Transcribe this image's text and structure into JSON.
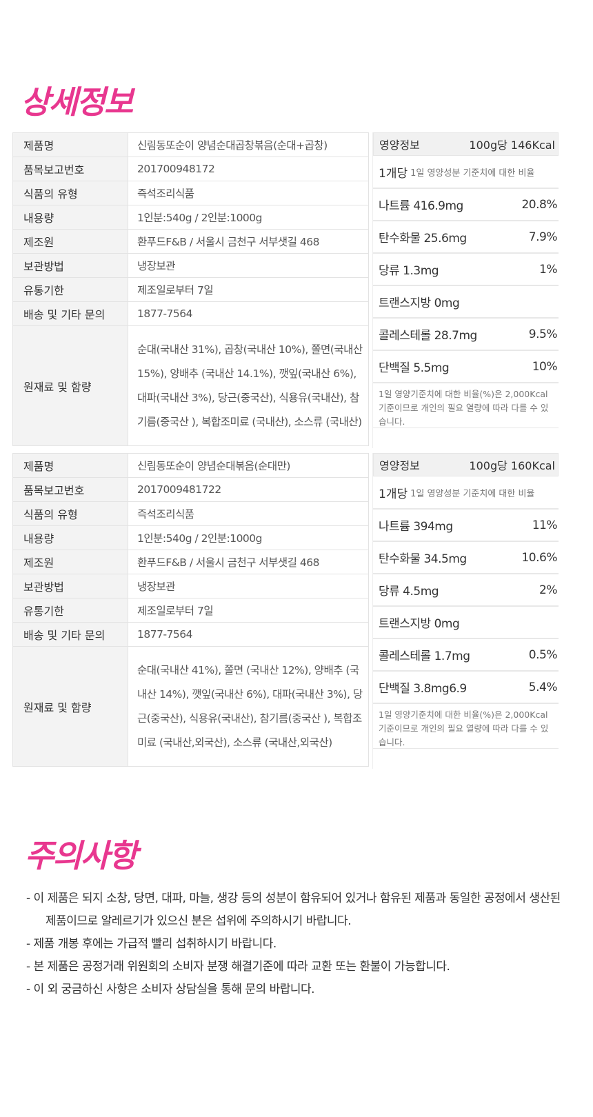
{
  "detail_title": "상세정보",
  "products": [
    {
      "spec": [
        {
          "label": "제품명",
          "value": "신림동또순이 양념순대곱창볶음(순대+곱창)"
        },
        {
          "label": "품목보고번호",
          "value": "201700948172"
        },
        {
          "label": "식품의 유형",
          "value": "즉석조리식품"
        },
        {
          "label": "내용량",
          "value": "1인분:540g / 2인분:1000g"
        },
        {
          "label": "제조원",
          "value": "환푸드F&B / 서울시 금천구 서부샛길 468"
        },
        {
          "label": "보관방법",
          "value": "냉장보관"
        },
        {
          "label": "유통기한",
          "value": "제조일로부터 7일"
        },
        {
          "label": "배송 및 기타 문의",
          "value": "1877-7564"
        },
        {
          "label": "원재료 및 함량",
          "value": "순대(국내산 31%), 곱창(국내산 10%), 쫄면(국내산 15%), 양배추 (국내산 14.1%), 깻잎(국내산 6%), 대파(국내산 3%), 당근(중국산), 식용유(국내산), 참기름(중국산 ), 복합조미료 (국내산), 소스류 (국내산)"
        }
      ],
      "nutrition": {
        "label": "영양정보",
        "kcal": "100g당 146Kcal",
        "per": "1개당",
        "per_note": "1일 영양성분 기준치에 대한 비율",
        "rows": [
          {
            "name": "나트륨 416.9mg",
            "pct": "20.8%"
          },
          {
            "name": "탄수화물 25.6mg",
            "pct": "7.9%"
          },
          {
            "name": "당류 1.3mg",
            "pct": "1%"
          },
          {
            "name": "트랜스지방 0mg",
            "pct": ""
          },
          {
            "name": "콜레스테롤 28.7mg",
            "pct": "9.5%"
          },
          {
            "name": "단백질 5.5mg",
            "pct": "10%"
          }
        ],
        "footnote": "1일 영양기준치에 대한 비율(%)은 2,000Kcal 기준이므로 개인의 필요 열량에 따라 다를 수 있습니다."
      }
    },
    {
      "spec": [
        {
          "label": "제품명",
          "value": "신림동또순이 양념순대볶음(순대만)"
        },
        {
          "label": "품목보고번호",
          "value": "2017009481722"
        },
        {
          "label": "식품의 유형",
          "value": "즉석조리식품"
        },
        {
          "label": "내용량",
          "value": "1인분:540g / 2인분:1000g"
        },
        {
          "label": "제조원",
          "value": "환푸드F&B / 서울시 금천구 서부샛길 468"
        },
        {
          "label": "보관방법",
          "value": "냉장보관"
        },
        {
          "label": "유통기한",
          "value": "제조일로부터 7일"
        },
        {
          "label": "배송 및 기타 문의",
          "value": "1877-7564"
        },
        {
          "label": "원재료 및 함량",
          "value": "순대(국내산 41%), 쫄면 (국내산 12%), 양배추 (국내산 14%), 깻잎(국내산 6%), 대파(국내산 3%), 당근(중국산), 식용유(국내산), 참기름(중국산 ), 복합조미료 (국내산,외국산), 소스류 (국내산,외국산)"
        }
      ],
      "nutrition": {
        "label": "영양정보",
        "kcal": "100g당 160Kcal",
        "per": "1개당",
        "per_note": "1일 영양성분 기준치에 대한 비율",
        "rows": [
          {
            "name": "나트륨 394mg",
            "pct": "11%"
          },
          {
            "name": "탄수화물 34.5mg",
            "pct": "10.6%"
          },
          {
            "name": "당류 4.5mg",
            "pct": "2%"
          },
          {
            "name": "트랜스지방 0mg",
            "pct": ""
          },
          {
            "name": "콜레스테롤 1.7mg",
            "pct": "0.5%"
          },
          {
            "name": "단백질 3.8mg6.9",
            "pct": "5.4%"
          }
        ],
        "footnote": "1일 영양기준치에 대한 비율(%)은 2,000Kcal 기준이므로 개인의 필요 열량에 따라 다를 수 있습니다."
      }
    }
  ],
  "caution_title": "주의사항",
  "cautions": [
    "- 이 제품은 되지 소창, 당면, 대파, 마늘, 생강 등의 성분이 함유되어 있거나 함유된 제품과 동일한 공정에서 생산된 제품이므로 알레르기가 있으신 분은 섭위에 주의하시기 바랍니다.",
    "- 제품 개봉 후에는 가급적 빨리 섭취하시기 바랍니다.",
    "- 본 제품은 공정거래 위원회의 소비자 분쟁 해결기준에 따라 교환 또는 환불이 가능합니다.",
    "- 이 외 궁금하신 사항은 소비자 상담실을 통해 문의 바랍니다."
  ],
  "colors": {
    "accent": "#e8378f"
  }
}
